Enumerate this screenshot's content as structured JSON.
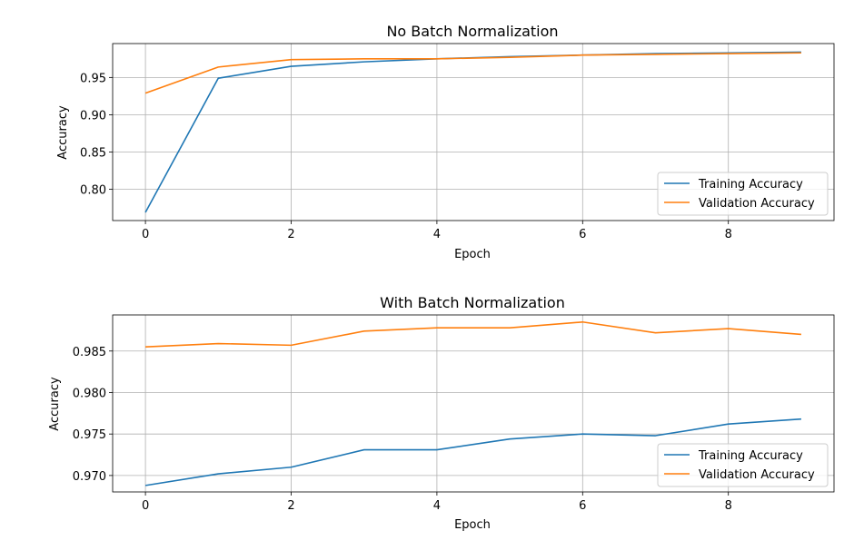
{
  "chart_data": [
    {
      "type": "line",
      "title": "No Batch Normalization",
      "xlabel": "Epoch",
      "ylabel": "Accuracy",
      "x": [
        0,
        1,
        2,
        3,
        4,
        5,
        6,
        7,
        8,
        9
      ],
      "xticks": [
        0,
        2,
        4,
        6,
        8
      ],
      "xtick_labels": [
        "0",
        "2",
        "4",
        "6",
        "8"
      ],
      "yticks": [
        0.8,
        0.85,
        0.9,
        0.95
      ],
      "ytick_labels": [
        "0.80",
        "0.85",
        "0.90",
        "0.95"
      ],
      "xlim": [
        -0.45,
        9.45
      ],
      "ylim": [
        0.758,
        0.9955
      ],
      "grid": true,
      "legend_position": "lower-right",
      "series": [
        {
          "name": "Training Accuracy",
          "color": "#1f77b4",
          "values": [
            0.769,
            0.949,
            0.965,
            0.971,
            0.975,
            0.978,
            0.98,
            0.982,
            0.983,
            0.984
          ]
        },
        {
          "name": "Validation Accuracy",
          "color": "#ff7f0e",
          "values": [
            0.929,
            0.964,
            0.974,
            0.975,
            0.975,
            0.977,
            0.98,
            0.981,
            0.982,
            0.983
          ]
        }
      ]
    },
    {
      "type": "line",
      "title": "With Batch Normalization",
      "xlabel": "Epoch",
      "ylabel": "Accuracy",
      "x": [
        0,
        1,
        2,
        3,
        4,
        5,
        6,
        7,
        8,
        9
      ],
      "xticks": [
        0,
        2,
        4,
        6,
        8
      ],
      "xtick_labels": [
        "0",
        "2",
        "4",
        "6",
        "8"
      ],
      "yticks": [
        0.97,
        0.975,
        0.98,
        0.985
      ],
      "ytick_labels": [
        "0.970",
        "0.975",
        "0.980",
        "0.985"
      ],
      "xlim": [
        -0.45,
        9.45
      ],
      "ylim": [
        0.96802,
        0.98935
      ],
      "grid": true,
      "legend_position": "lower-right",
      "series": [
        {
          "name": "Training Accuracy",
          "color": "#1f77b4",
          "values": [
            0.9688,
            0.9702,
            0.971,
            0.9731,
            0.9731,
            0.9744,
            0.975,
            0.9748,
            0.9762,
            0.9768
          ]
        },
        {
          "name": "Validation Accuracy",
          "color": "#ff7f0e",
          "values": [
            0.9855,
            0.9859,
            0.9857,
            0.9874,
            0.9878,
            0.9878,
            0.9885,
            0.9872,
            0.9877,
            0.987
          ]
        }
      ]
    }
  ]
}
